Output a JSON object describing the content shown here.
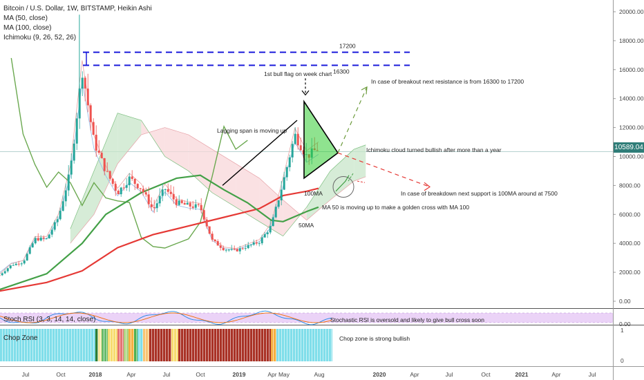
{
  "legend": {
    "symbol": "Bitcoin / U.S. Dollar, 1W, BITSTAMP, Heikin Ashi",
    "indicators": [
      "MA (50, close)",
      "MA (100, close)",
      "Ichimoku (9, 26, 52, 26)"
    ]
  },
  "last_price": "10589.04",
  "panels": {
    "stoch_label": "Stoch RSI (3, 3, 14, 14, close)",
    "chop_label": "Chop Zone"
  },
  "colors": {
    "bull_candle": "#26a69a",
    "bear_candle": "#ef5350",
    "ma50": "#43a047",
    "ma100": "#e53935",
    "lagging_span": "#6aa84f",
    "cloud_bull": "#c8e6c9",
    "cloud_bear": "#f8d7da",
    "resistance_lines": "#1a1adb",
    "stoch_band": "#e6c8f5",
    "price_tag": "#2f7d78"
  },
  "chart_data": {
    "type": "candlestick",
    "chart_style": "Heikin Ashi",
    "timeframe": "1W",
    "x_tick_labels": [
      "Jul",
      "Oct",
      "2018",
      "Apr",
      "Jul",
      "Oct",
      "2019",
      "Apr",
      "May",
      "Aug",
      "2020",
      "Apr",
      "Jul",
      "Oct",
      "2021",
      "Apr",
      "Jul"
    ],
    "y_axis": {
      "ylim": [
        0,
        20000
      ],
      "tick_labels": [
        "0.00",
        "2000.00",
        "4000.00",
        "6000.00",
        "8000.00",
        "10000.00",
        "12000.00",
        "14000.00",
        "16000.00",
        "18000.00",
        "20000.00"
      ]
    },
    "close_path": [
      {
        "month": "2017-05",
        "close": 1800
      },
      {
        "month": "2017-06",
        "close": 2500
      },
      {
        "month": "2017-07",
        "close": 2700
      },
      {
        "month": "2017-08",
        "close": 4300
      },
      {
        "month": "2017-09",
        "close": 4300
      },
      {
        "month": "2017-10",
        "close": 5800
      },
      {
        "month": "2017-11",
        "close": 9000
      },
      {
        "month": "2017-12",
        "close": 16000
      },
      {
        "month": "2018-01",
        "close": 11000
      },
      {
        "month": "2018-02",
        "close": 9000
      },
      {
        "month": "2018-03",
        "close": 7500
      },
      {
        "month": "2018-04",
        "close": 8500
      },
      {
        "month": "2018-05",
        "close": 7800
      },
      {
        "month": "2018-06",
        "close": 6300
      },
      {
        "month": "2018-07",
        "close": 7800
      },
      {
        "month": "2018-08",
        "close": 6800
      },
      {
        "month": "2018-09",
        "close": 6600
      },
      {
        "month": "2018-10",
        "close": 6500
      },
      {
        "month": "2018-11",
        "close": 4200
      },
      {
        "month": "2018-12",
        "close": 3600
      },
      {
        "month": "2019-01",
        "close": 3500
      },
      {
        "month": "2019-02",
        "close": 3800
      },
      {
        "month": "2019-03",
        "close": 4100
      },
      {
        "month": "2019-04",
        "close": 5200
      },
      {
        "month": "2019-05",
        "close": 8200
      },
      {
        "month": "2019-06",
        "close": 11500
      },
      {
        "month": "2019-07",
        "close": 10000
      },
      {
        "month": "2019-08",
        "close": 10589
      }
    ],
    "ma50": [
      {
        "month": "2017-05",
        "close": 800
      },
      {
        "month": "2017-09",
        "close": 1900
      },
      {
        "month": "2017-12",
        "close": 4000
      },
      {
        "month": "2018-02",
        "close": 6000
      },
      {
        "month": "2018-05",
        "close": 7500
      },
      {
        "month": "2018-08",
        "close": 8500
      },
      {
        "month": "2018-10",
        "close": 8700
      },
      {
        "month": "2018-12",
        "close": 7700
      },
      {
        "month": "2019-02",
        "close": 6800
      },
      {
        "month": "2019-04",
        "close": 5600
      },
      {
        "month": "2019-05",
        "close": 5500
      },
      {
        "month": "2019-07",
        "close": 6200
      },
      {
        "month": "2019-08",
        "close": 6500
      }
    ],
    "ma100": [
      {
        "month": "2017-05",
        "close": 700
      },
      {
        "month": "2017-09",
        "close": 1300
      },
      {
        "month": "2017-12",
        "close": 2100
      },
      {
        "month": "2018-03",
        "close": 3700
      },
      {
        "month": "2018-06",
        "close": 4600
      },
      {
        "month": "2018-09",
        "close": 5200
      },
      {
        "month": "2018-12",
        "close": 5800
      },
      {
        "month": "2019-03",
        "close": 6400
      },
      {
        "month": "2019-05",
        "close": 7300
      },
      {
        "month": "2019-07",
        "close": 7600
      },
      {
        "month": "2019-08",
        "close": 7800
      }
    ],
    "resistance_levels": [
      {
        "label": "17200",
        "value": 17200
      },
      {
        "label": "16300",
        "value": 16300
      }
    ],
    "annotations": [
      "1st bull flag on week chart",
      "In case of breakout next resistance is from 16300 to 17200",
      "Lagging span is moving up",
      "Ichimoku cloud turned bullish after more than a year",
      "In case of breakdown next support is 100MA around at 7500",
      "100MA",
      "MA 50 is moving up to make a golden cross with MA 100",
      "50MA",
      "Stochastic RSI is oversold and likely to give bull cross soon",
      "Chop zone is strong bullish"
    ],
    "stoch_axis_labels": [
      "0.00"
    ],
    "chop_axis_labels": [
      "1",
      "0"
    ]
  }
}
